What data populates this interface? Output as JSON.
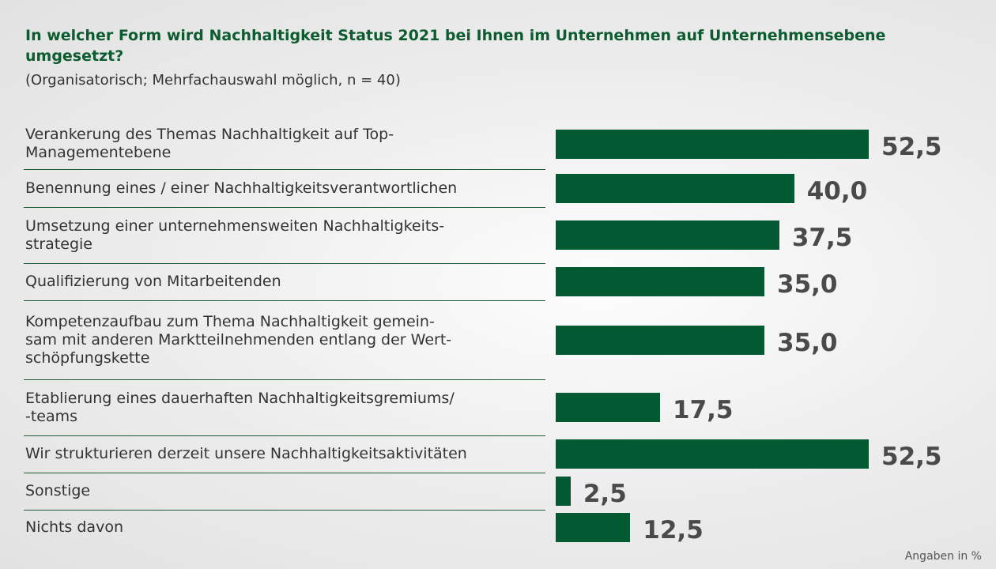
{
  "chart_data": {
    "type": "bar",
    "orientation": "horizontal",
    "title": "In welcher Form wird Nachhaltigkeit Status 2021 bei Ihnen im Unternehmen auf Unternehmensebene umgesetzt?",
    "subtitle": "(Organisatorisch; Mehrfachauswahl möglich, n = 40)",
    "note": "Angaben in %",
    "color": "#025a32",
    "categories": [
      "Verankerung des Themas Nachhaltigkeit auf Top-\nManagementebene",
      "Benennung eines / einer Nachhaltigkeitsverantwortlichen",
      "Umsetzung einer unternehmensweiten Nachhaltigkeits-\nstrategie",
      "Qualifizierung von Mitarbeitenden",
      "Kompetenzaufbau zum Thema Nachhaltigkeit gemein-\nsam mit anderen Marktteilnehmenden entlang der Wert-\nschöpfungskette",
      "Etablierung eines dauerhaften Nachhaltigkeitsgremiums/\n-teams",
      "Wir strukturieren derzeit unsere Nachhaltigkeitsaktivitäten",
      "Sonstige",
      "Nichts davon"
    ],
    "values": [
      52.5,
      40.0,
      37.5,
      35.0,
      35.0,
      17.5,
      52.5,
      2.5,
      12.5
    ],
    "value_labels": [
      "52,5",
      "40,0",
      "37,5",
      "35,0",
      "35,0",
      "17,5",
      "52,5",
      "2,5",
      "12,5"
    ]
  }
}
